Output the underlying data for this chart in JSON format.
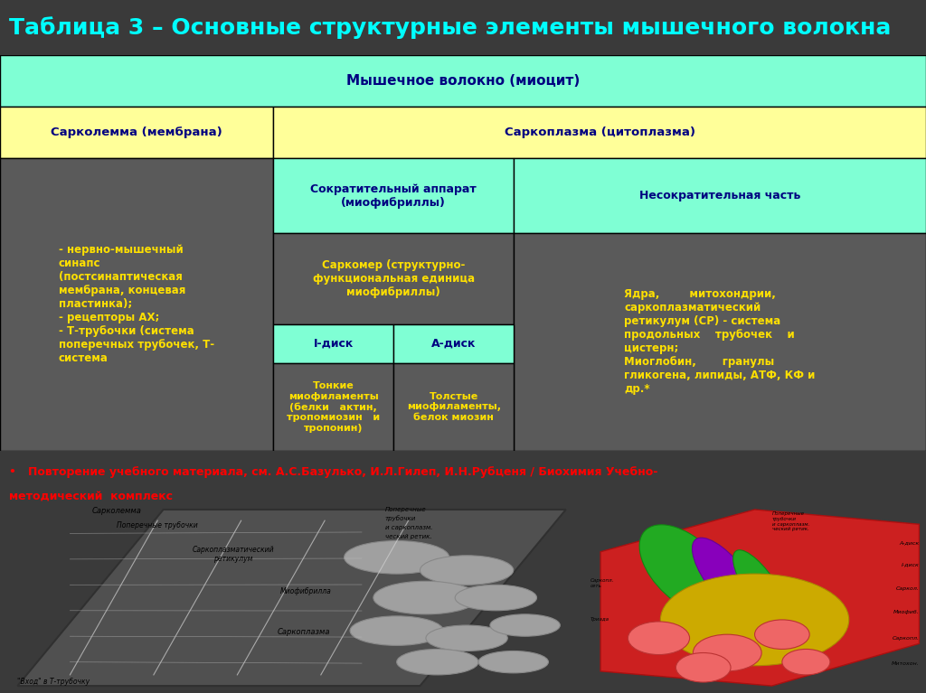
{
  "title": "Таблица 3 – Основные структурные элементы мышечного волокна",
  "title_color": "#00FFFF",
  "title_bg": "#2F4F4F",
  "title_fontsize": 18,
  "bg_color": "#3A3A3A",
  "row0_text": "Мышечное волокно (миоцит)",
  "row0_bg": "#7FFFD4",
  "row0_color": "#000080",
  "row1_col0": "Сарколемма (мембрана)",
  "row1_col1": "Саркоплазма (цитоплазма)",
  "row1_bg": "#FFFF99",
  "row1_color": "#000080",
  "row2_col0": "- нервно-мышечный\nсинапс\n(постсинаптическая\nмембрана, концевая\nпластинка);\n- рецепторы АХ;\n- Т-трубочки (система\nпоперечных трубочек, Т-\nсистема",
  "row2_col1_top": "Сократительный аппарат\n(миофибриллы)",
  "row2_col2_top": "Несократительная часть",
  "row2_col1_mid": "Саркомер (структурно-\nфункциональная единица\nмиофибриллы)",
  "row2_col2_mid": "Ядра,        митохондрии,\nсаркоплазматический\nретикулум (СР) - система\nпродольных    трубочек    и\nцистерн;\nМиоглобин,       гранулы\nгликогена, липиды, АТФ, КФ и\nдр.*",
  "row2_col1_diskI": "I-диск",
  "row2_col1_diskA": "А-диск",
  "row2_col1_bot1": "Тонкие\nмиофиламенты\n(белки   актин,\nтропомиозин   и\nтропонин)",
  "row2_col1_bot2": "Толстые\nмиофиламенты,\nбелок миозин",
  "cell_text_color": "#FFE000",
  "cell_text_color_header": "#000080",
  "green_bg": "#7FFFD4",
  "dark_bg": "#5A5A5A",
  "note_text": "•   Повторение учебного материала, см. А.С.Базулько, И.Л.Гилеп, И.Н.Рубценя / Биохимия Учебно-",
  "note_text2": "методический  комплекс",
  "note_color": "#FF0000",
  "note_bg": "#DCDCDC"
}
